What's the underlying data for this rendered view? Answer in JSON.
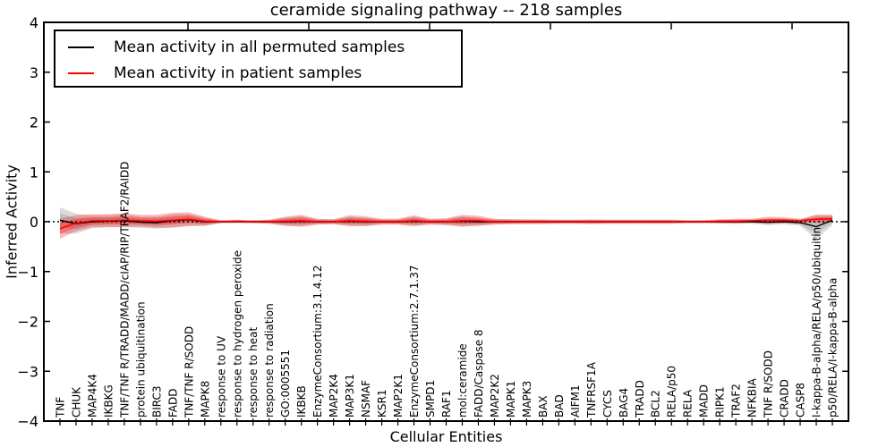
{
  "title": "ceramide signaling pathway -- 218 samples",
  "axes": {
    "ylabel": "Inferred Activity",
    "xlabel": "Cellular Entities",
    "yticks": [
      "4",
      "3",
      "2",
      "1",
      "0",
      "−1",
      "−2",
      "−3",
      "−4"
    ],
    "ytick_values": [
      4,
      3,
      2,
      1,
      0,
      -1,
      -2,
      -3,
      -4
    ]
  },
  "legend": {
    "entries": [
      {
        "label": "Mean activity in all permuted samples",
        "color": "#000000"
      },
      {
        "label": "Mean activity in patient samples",
        "color": "#ff0000"
      }
    ]
  },
  "chart_data": {
    "type": "line",
    "title": "ceramide signaling pathway -- 218 samples",
    "xlabel": "Cellular Entities",
    "ylabel": "Inferred Activity",
    "ylim": [
      -4,
      4
    ],
    "grid": false,
    "legend_position": "upper left",
    "categories": [
      "TNF",
      "CHUK",
      "MAP4K4",
      "IKBKG",
      "TNF/TNF R/TRADD/MADD/cIAP/RIP/TRAF2/RAIDD",
      "protein ubiquitination",
      "BIRC3",
      "FADD",
      "TNF/TNF R/SODD",
      "MAPK8",
      "response to UV",
      "response to hydrogen peroxide",
      "response to heat",
      "response to radiation",
      "GO:0005551",
      "IKBKB",
      "EnzymeConsortium:3.1.4.12",
      "MAP2K4",
      "MAP3K1",
      "NSMAF",
      "KSR1",
      "MAP2K1",
      "EnzymeConsortium:2.7.1.37",
      "SMPD1",
      "RAF1",
      "mol:ceramide",
      "FADD/Caspase 8",
      "MAP2K2",
      "MAPK1",
      "MAPK3",
      "BAX",
      "BAD",
      "AIFM1",
      "TNFRSF1A",
      "CYCS",
      "BAG4",
      "TRADD",
      "BCL2",
      "RELA/p50",
      "RELA",
      "MADD",
      "RIPK1",
      "TRAF2",
      "NFKBIA",
      "TNF R/SODD",
      "CRADD",
      "CASP8",
      "I-kappa-B-alpha/RELA/p50/ubiquitin",
      "p50/RELA/I-kappa-B-alpha"
    ],
    "series": [
      {
        "name": "Mean activity in all permuted samples",
        "color": "#000000",
        "values": [
          0.03,
          -0.04,
          0.0,
          0.01,
          0.02,
          -0.01,
          -0.02,
          0.02,
          0.04,
          0.0,
          0.0,
          0.0,
          0.0,
          0.0,
          0.0,
          0.01,
          0.0,
          0.0,
          0.01,
          0.0,
          0.0,
          0.0,
          0.01,
          0.0,
          0.0,
          0.01,
          0.0,
          0.0,
          0.0,
          0.0,
          0.0,
          0.0,
          0.0,
          0.0,
          0.0,
          0.0,
          0.0,
          0.0,
          0.0,
          0.0,
          0.0,
          0.0,
          0.0,
          0.0,
          -0.01,
          0.0,
          -0.02,
          -0.1,
          0.03
        ]
      },
      {
        "name": "Mean activity in patient samples",
        "color": "#ff0000",
        "values": [
          -0.14,
          -0.03,
          0.02,
          0.02,
          0.03,
          0.02,
          0.01,
          0.03,
          0.05,
          0.01,
          0.0,
          0.01,
          0.0,
          0.0,
          0.01,
          0.02,
          0.0,
          0.0,
          0.02,
          0.01,
          0.0,
          0.0,
          0.02,
          0.0,
          0.0,
          0.02,
          0.02,
          0.0,
          0.0,
          0.0,
          0.0,
          0.0,
          0.0,
          0.0,
          0.0,
          0.0,
          0.0,
          0.0,
          0.0,
          0.0,
          0.0,
          0.01,
          0.01,
          0.02,
          0.03,
          0.03,
          0.02,
          0.05,
          0.06
        ]
      }
    ],
    "bands": [
      {
        "follows": "Mean activity in all permuted samples",
        "color": "#888888",
        "opacity": 0.3,
        "half_widths": [
          0.26,
          0.2,
          0.13,
          0.12,
          0.13,
          0.11,
          0.12,
          0.13,
          0.12,
          0.08,
          0.03,
          0.03,
          0.03,
          0.04,
          0.08,
          0.1,
          0.05,
          0.05,
          0.09,
          0.08,
          0.05,
          0.05,
          0.09,
          0.05,
          0.06,
          0.1,
          0.08,
          0.05,
          0.05,
          0.04,
          0.04,
          0.04,
          0.04,
          0.04,
          0.04,
          0.04,
          0.04,
          0.04,
          0.04,
          0.03,
          0.03,
          0.04,
          0.04,
          0.04,
          0.06,
          0.05,
          0.06,
          0.25,
          0.1
        ]
      },
      {
        "follows": "Mean activity in patient samples",
        "color": "#ff0000",
        "opacity": 0.27,
        "half_widths": [
          0.2,
          0.16,
          0.13,
          0.13,
          0.14,
          0.12,
          0.13,
          0.15,
          0.14,
          0.09,
          0.03,
          0.03,
          0.03,
          0.04,
          0.09,
          0.12,
          0.06,
          0.05,
          0.11,
          0.1,
          0.06,
          0.06,
          0.11,
          0.06,
          0.07,
          0.12,
          0.1,
          0.06,
          0.05,
          0.05,
          0.05,
          0.04,
          0.04,
          0.05,
          0.04,
          0.04,
          0.04,
          0.04,
          0.04,
          0.03,
          0.03,
          0.04,
          0.05,
          0.04,
          0.07,
          0.06,
          0.04,
          0.08,
          0.08
        ]
      }
    ],
    "zero_reference_line": {
      "y": 0,
      "style": "dotted",
      "color": "#000000"
    }
  }
}
